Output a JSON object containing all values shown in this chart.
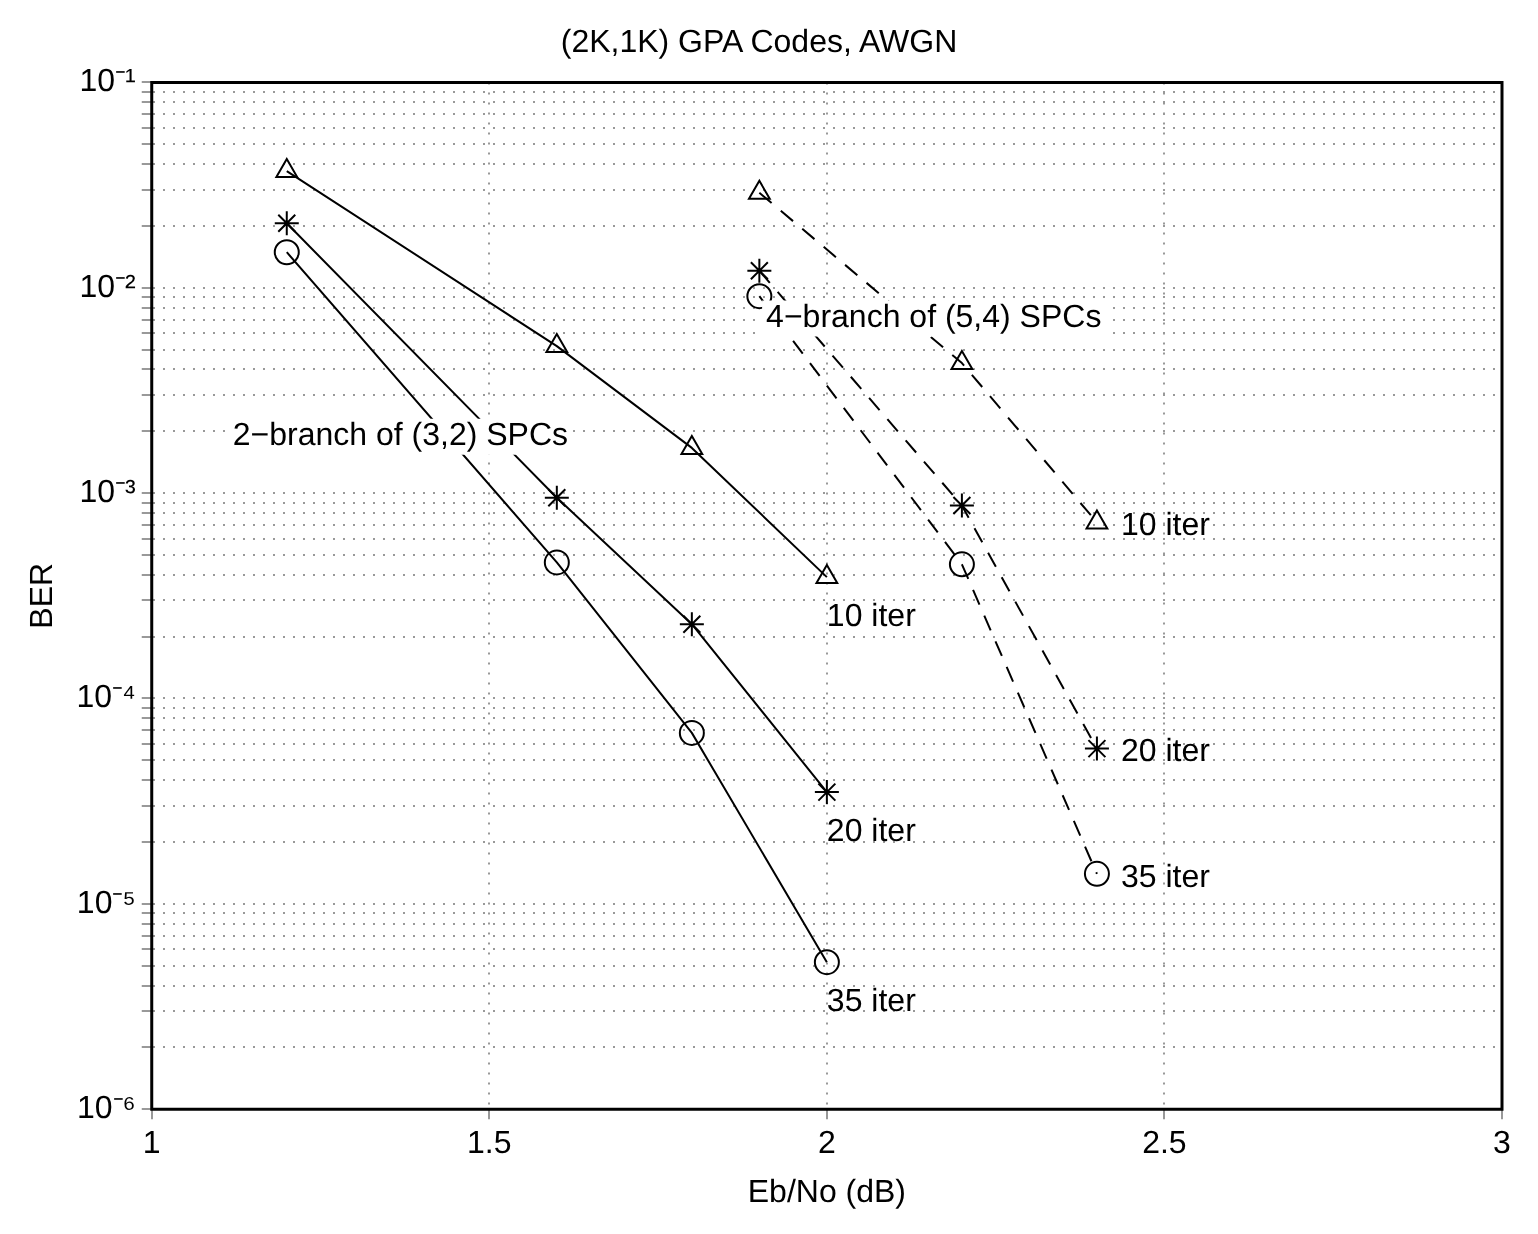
{
  "chart_data": {
    "type": "line",
    "title": "(2K,1K) GPA Codes, AWGN",
    "xlabel": "Eb/No (dB)",
    "ylabel": "BER",
    "log": "y",
    "grid": true,
    "xlim": [
      1,
      3
    ],
    "xticks": [
      1,
      1.5,
      2,
      2.5,
      3
    ],
    "ylim": [
      1e-06,
      0.1
    ],
    "yticks": [
      {
        "value": 1e-06,
        "label": "10⁻⁶"
      },
      {
        "value": 2e-06,
        "label": null
      },
      {
        "value": 3e-06,
        "label": null
      },
      {
        "value": 4e-06,
        "label": null
      },
      {
        "value": 5e-06,
        "label": null
      },
      {
        "value": 6e-06,
        "label": null
      },
      {
        "value": 7e-06,
        "label": null
      },
      {
        "value": 8e-06,
        "label": null
      },
      {
        "value": 9e-06,
        "label": null
      },
      {
        "value": 1e-05,
        "label": "10⁻⁵"
      },
      {
        "value": 2e-05,
        "label": null
      },
      {
        "value": 3e-05,
        "label": null
      },
      {
        "value": 4e-05,
        "label": null
      },
      {
        "value": 5e-05,
        "label": null
      },
      {
        "value": 6e-05,
        "label": null
      },
      {
        "value": 7e-05,
        "label": null
      },
      {
        "value": 8e-05,
        "label": null
      },
      {
        "value": 9e-05,
        "label": null
      },
      {
        "value": 0.0001,
        "label": "10⁻⁴"
      },
      {
        "value": 0.0002,
        "label": null
      },
      {
        "value": 0.0003,
        "label": null
      },
      {
        "value": 0.0004,
        "label": null
      },
      {
        "value": 0.0005,
        "label": null
      },
      {
        "value": 0.0006,
        "label": null
      },
      {
        "value": 0.0007,
        "label": null
      },
      {
        "value": 0.0008,
        "label": null
      },
      {
        "value": 0.0009,
        "label": null
      },
      {
        "value": 0.001,
        "label": "10⁻³"
      },
      {
        "value": 0.002,
        "label": null
      },
      {
        "value": 0.003,
        "label": null
      },
      {
        "value": 0.004,
        "label": null
      },
      {
        "value": 0.005,
        "label": null
      },
      {
        "value": 0.006,
        "label": null
      },
      {
        "value": 0.007,
        "label": null
      },
      {
        "value": 0.008,
        "label": null
      },
      {
        "value": 0.009,
        "label": null
      },
      {
        "value": 0.01,
        "label": "10⁻²"
      },
      {
        "value": 0.02,
        "label": null
      },
      {
        "value": 0.03,
        "label": null
      },
      {
        "value": 0.04,
        "label": null
      },
      {
        "value": 0.05,
        "label": null
      },
      {
        "value": 0.06,
        "label": null
      },
      {
        "value": 0.07,
        "label": null
      },
      {
        "value": 0.08,
        "label": null
      },
      {
        "value": 0.09,
        "label": null
      },
      {
        "value": 0.1,
        "label": "10⁻¹"
      }
    ],
    "series": [
      {
        "name": "10 iter",
        "color": "#000000",
        "marker": "triangle",
        "line_style": "solid",
        "x": [
          1.2,
          1.6,
          1.8,
          2.0
        ],
        "values": [
          0.037,
          0.0052,
          0.00166,
          0.00039
        ]
      },
      {
        "name": "20 iter",
        "color": "#000000",
        "marker": "cross",
        "line_style": "solid",
        "x": [
          1.2,
          1.6,
          1.8,
          2.0
        ],
        "values": [
          0.0206,
          0.00095,
          0.00023,
          3.5e-05
        ]
      },
      {
        "name": "35 iter",
        "color": "#000000",
        "marker": "circle",
        "line_style": "solid",
        "x": [
          1.2,
          1.6,
          1.8,
          2.0
        ],
        "values": [
          0.0149,
          0.00046,
          6.8e-05,
          5.2e-06
        ]
      },
      {
        "name": "10 iter",
        "color": "#000000",
        "marker": "triangle",
        "line_style": "dashed",
        "x": [
          1.9,
          2.2,
          2.4
        ],
        "values": [
          0.029,
          0.0043,
          0.00072
        ]
      },
      {
        "name": "20 iter",
        "color": "#000000",
        "marker": "cross",
        "line_style": "dashed",
        "x": [
          1.9,
          2.2,
          2.4
        ],
        "values": [
          0.0121,
          0.00087,
          5.7e-05
        ]
      },
      {
        "name": "35 iter",
        "color": "#000000",
        "marker": "circle",
        "line_style": "dashed",
        "x": [
          1.9,
          2.2,
          2.4
        ],
        "values": [
          0.0091,
          0.00045,
          1.4e-05
        ]
      }
    ],
    "annotations": [
      "2−branch of (3,2) SPCs",
      "4−branch of (5,4) SPCs"
    ]
  }
}
